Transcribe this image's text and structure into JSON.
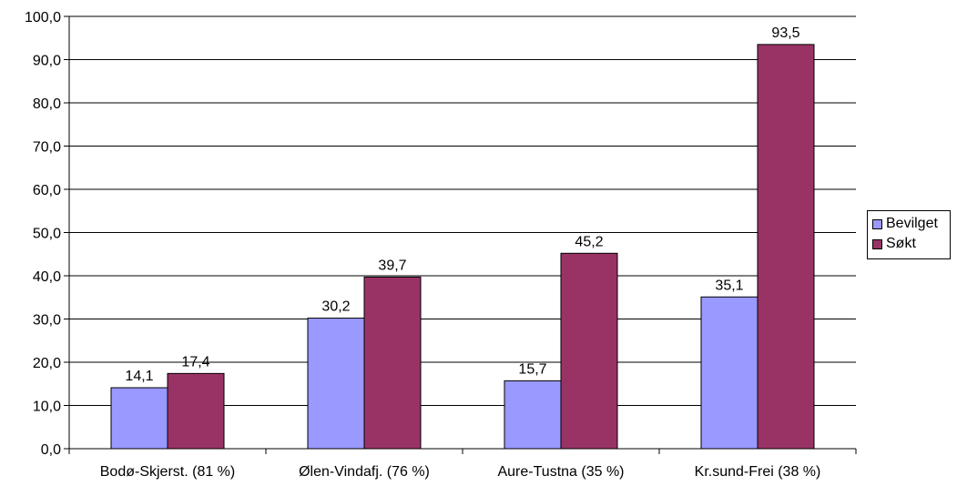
{
  "chart_data": {
    "type": "bar",
    "categories": [
      "Bodø-Skjerst. (81 %)",
      "Ølen-Vindafj. (76 %)",
      "Aure-Tustna (35 %)",
      "Kr.sund-Frei (38 %)"
    ],
    "series": [
      {
        "name": "Bevilget",
        "color": "#9999FF",
        "values": [
          14.1,
          30.2,
          15.7,
          35.1
        ],
        "labels": [
          "14,1",
          "30,2",
          "15,7",
          "35,1"
        ]
      },
      {
        "name": "Søkt",
        "color": "#993366",
        "values": [
          17.4,
          39.7,
          45.2,
          93.5
        ],
        "labels": [
          "17,4",
          "39,7",
          "45,2",
          "93,5"
        ]
      }
    ],
    "ylim": [
      0,
      100
    ],
    "yticks": [
      "0,0",
      "10,0",
      "20,0",
      "30,0",
      "40,0",
      "50,0",
      "60,0",
      "70,0",
      "80,0",
      "90,0",
      "100,0"
    ],
    "grid": true,
    "legend_position": "right"
  }
}
